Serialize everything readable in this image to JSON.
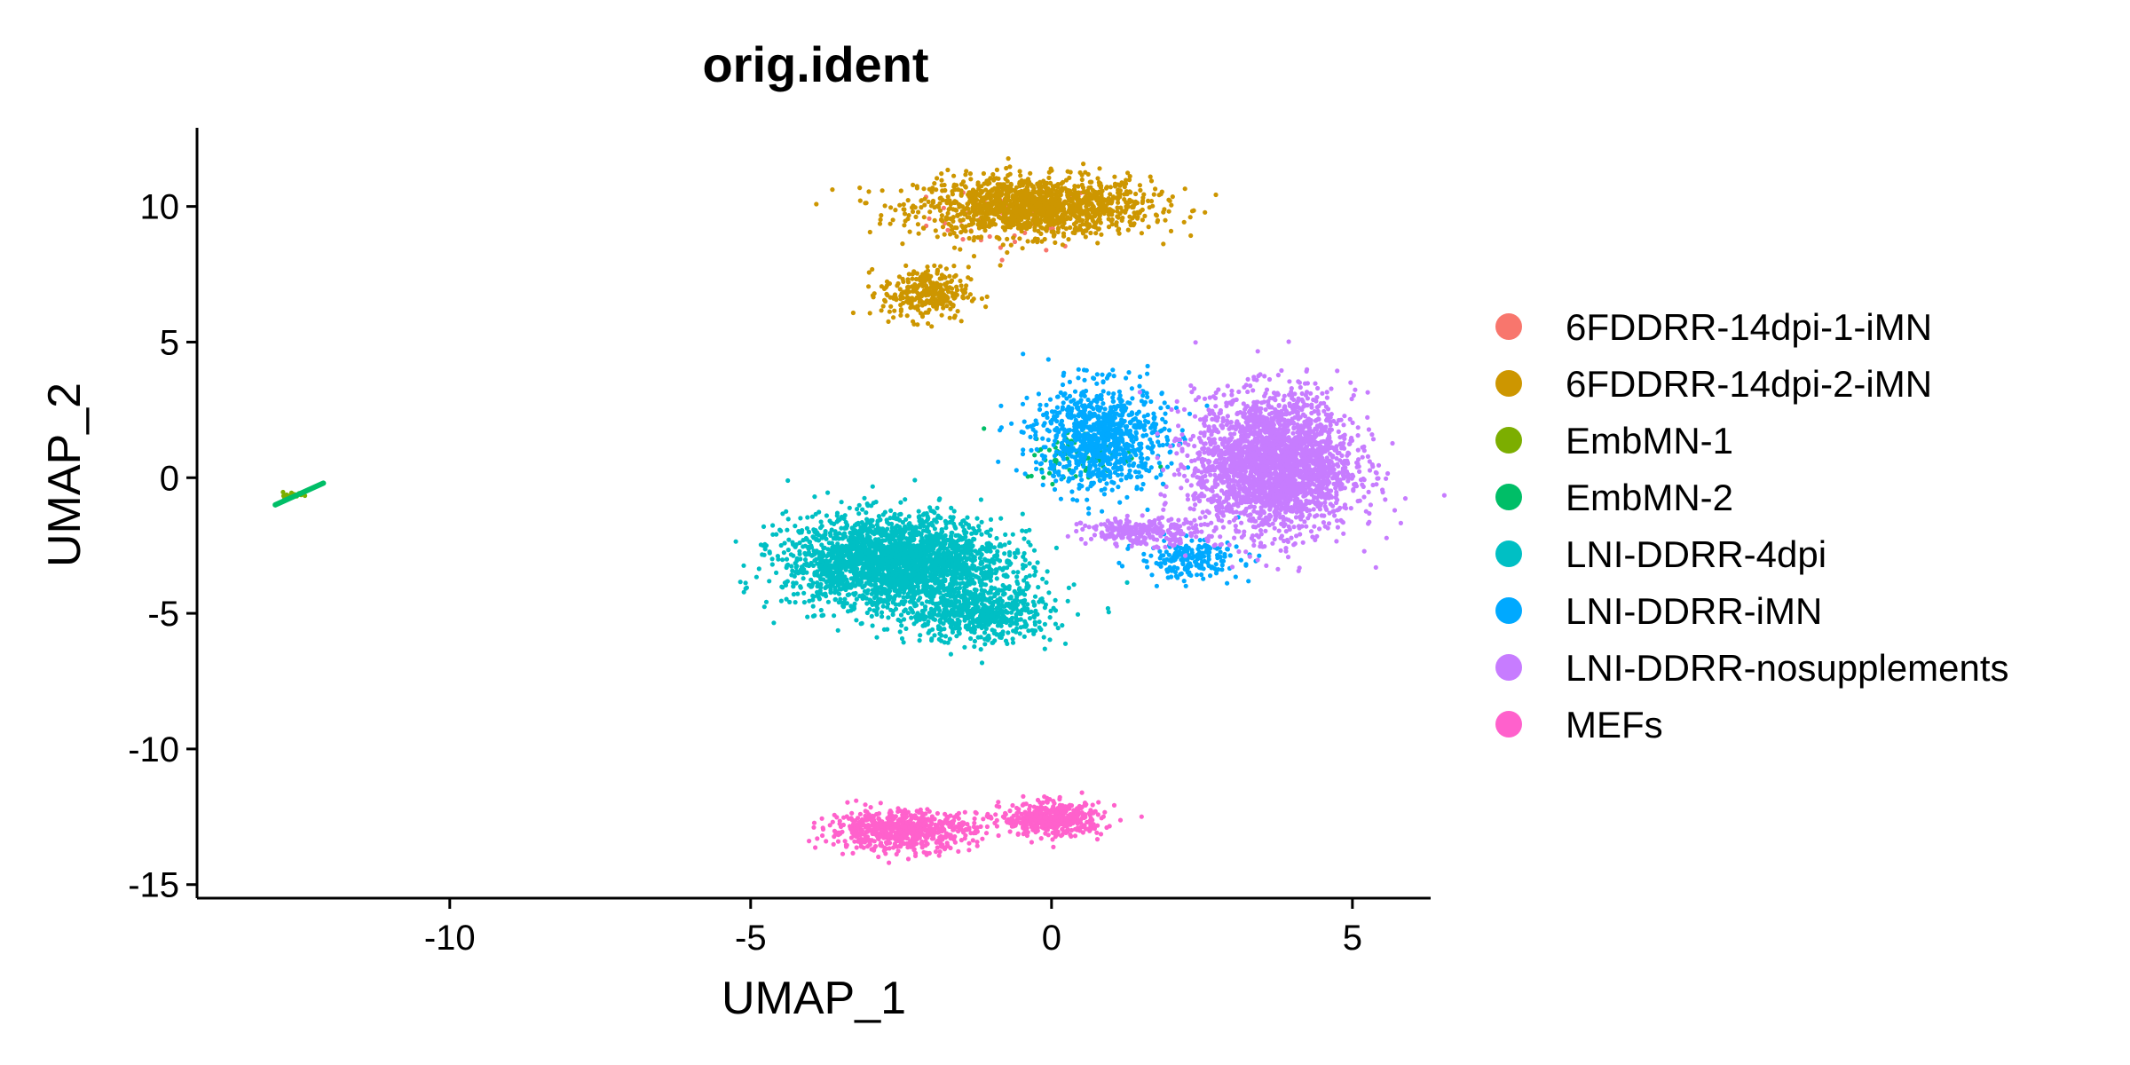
{
  "chart_data": {
    "type": "scatter",
    "title": "orig.ident",
    "xlabel": "UMAP_1",
    "ylabel": "UMAP_2",
    "xlim": [
      -14.2,
      6.3
    ],
    "ylim": [
      -15.5,
      12.9
    ],
    "x_ticks": [
      -10,
      -5,
      0,
      5
    ],
    "y_ticks": [
      -15,
      -10,
      -5,
      0,
      5,
      10
    ],
    "grid": false,
    "legend_position": "right",
    "series": [
      {
        "name": "6FDDRR-14dpi-1-iMN",
        "color": "#F8766D",
        "clusters": [
          {
            "cx": -0.6,
            "cy": 9.6,
            "sx": 1.2,
            "sy": 1.0,
            "n": 60
          }
        ]
      },
      {
        "name": "6FDDRR-14dpi-2-iMN",
        "color": "#CD9600",
        "clusters": [
          {
            "cx": -0.3,
            "cy": 10.0,
            "sx": 1.6,
            "sy": 0.9,
            "n": 1400
          },
          {
            "cx": -2.1,
            "cy": 6.8,
            "sx": 0.6,
            "sy": 0.8,
            "n": 300
          }
        ]
      },
      {
        "name": "EmbMN-1",
        "color": "#7CAE00",
        "clusters": [
          {
            "cx": -12.6,
            "cy": -0.65,
            "sx": 0.15,
            "sy": 0.1,
            "n": 20
          }
        ]
      },
      {
        "name": "EmbMN-2",
        "color": "#00BE67",
        "line_segment": {
          "x": [
            -12.9,
            -12.1
          ],
          "y": [
            -1.0,
            -0.2
          ]
        },
        "clusters": [
          {
            "cx": 0.5,
            "cy": 0.8,
            "sx": 0.8,
            "sy": 0.8,
            "n": 80
          }
        ]
      },
      {
        "name": "LNI-DDRR-4dpi",
        "color": "#00BFC4",
        "clusters": [
          {
            "cx": -2.6,
            "cy": -3.1,
            "sx": 1.5,
            "sy": 1.4,
            "n": 2500
          },
          {
            "cx": -1.2,
            "cy": -5.0,
            "sx": 1.0,
            "sy": 0.9,
            "n": 600
          }
        ]
      },
      {
        "name": "LNI-DDRR-iMN",
        "color": "#00A9FF",
        "clusters": [
          {
            "cx": 0.8,
            "cy": 1.5,
            "sx": 0.9,
            "sy": 1.6,
            "n": 900
          },
          {
            "cx": 2.3,
            "cy": -3.0,
            "sx": 0.7,
            "sy": 0.6,
            "n": 200
          }
        ]
      },
      {
        "name": "LNI-DDRR-nosupplements",
        "color": "#C77CFF",
        "clusters": [
          {
            "cx": 3.7,
            "cy": 0.5,
            "sx": 1.1,
            "sy": 2.1,
            "n": 2600
          },
          {
            "cx": 1.5,
            "cy": -2.0,
            "sx": 0.8,
            "sy": 0.4,
            "n": 250
          }
        ]
      },
      {
        "name": "MEFs",
        "color": "#FF61CC",
        "clusters": [
          {
            "cx": -2.5,
            "cy": -13.0,
            "sx": 1.0,
            "sy": 0.6,
            "n": 700
          },
          {
            "cx": 0.0,
            "cy": -12.6,
            "sx": 0.7,
            "sy": 0.5,
            "n": 450
          }
        ]
      }
    ]
  }
}
